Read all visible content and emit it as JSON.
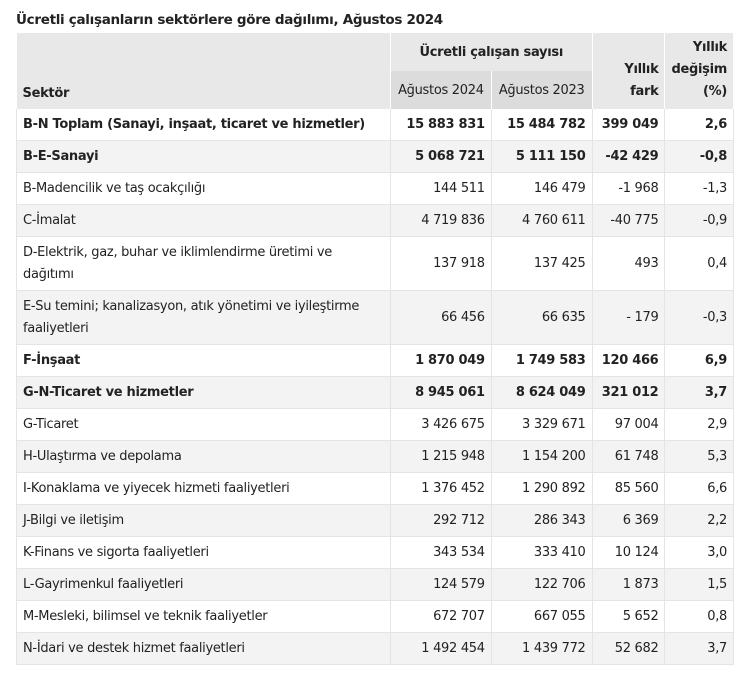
{
  "title": "Ücretli çalışanların sektörlere göre dağılımı, Ağustos 2024",
  "header": {
    "sector": "Sektör",
    "group": "Ücretli çalışan sayısı",
    "col1": "Ağustos 2024",
    "col2": "Ağustos 2023",
    "diff": "Yıllık fark",
    "change": "Yıllık değişim (%)"
  },
  "rows": [
    {
      "sector": "B-N Toplam (Sanayi, inşaat, ticaret ve hizmetler)",
      "a2024": "15 883 831",
      "a2023": "15 484 782",
      "diff": "399 049",
      "change": "2,6"
    },
    {
      "sector": "B-E-Sanayi",
      "a2024": "5 068 721",
      "a2023": "5 111 150",
      "diff": "-42 429",
      "change": "-0,8"
    },
    {
      "sector": "B-Madencilik ve taş ocakçılığı",
      "a2024": "144 511",
      "a2023": "146 479",
      "diff": "-1 968",
      "change": "-1,3"
    },
    {
      "sector": "C-İmalat",
      "a2024": "4 719 836",
      "a2023": "4 760 611",
      "diff": "-40 775",
      "change": "-0,9"
    },
    {
      "sector": "D-Elektrik, gaz, buhar ve iklimlendirme üretimi ve dağıtımı",
      "a2024": "137 918",
      "a2023": "137 425",
      "diff": "493",
      "change": "0,4"
    },
    {
      "sector": "E-Su temini; kanalizasyon, atık yönetimi ve iyileştirme faaliyetleri",
      "a2024": "66 456",
      "a2023": "66 635",
      "diff": "- 179",
      "change": "-0,3"
    },
    {
      "sector": "F-İnşaat",
      "a2024": "1 870 049",
      "a2023": "1 749 583",
      "diff": "120 466",
      "change": "6,9"
    },
    {
      "sector": "G-N-Ticaret ve hizmetler",
      "a2024": "8 945 061",
      "a2023": "8 624 049",
      "diff": "321 012",
      "change": "3,7"
    },
    {
      "sector": "G-Ticaret",
      "a2024": "3 426 675",
      "a2023": "3 329 671",
      "diff": "97 004",
      "change": "2,9"
    },
    {
      "sector": "H-Ulaştırma ve depolama",
      "a2024": "1 215 948",
      "a2023": "1 154 200",
      "diff": "61 748",
      "change": "5,3"
    },
    {
      "sector": "I-Konaklama ve yiyecek hizmeti faaliyetleri",
      "a2024": "1 376 452",
      "a2023": "1 290 892",
      "diff": "85 560",
      "change": "6,6"
    },
    {
      "sector": "J-Bilgi ve iletişim",
      "a2024": "292 712",
      "a2023": "286 343",
      "diff": "6 369",
      "change": "2,2"
    },
    {
      "sector": "K-Finans ve sigorta faaliyetleri",
      "a2024": "343 534",
      "a2023": "333 410",
      "diff": "10 124",
      "change": "3,0"
    },
    {
      "sector": "L-Gayrimenkul faaliyetleri",
      "a2024": "124 579",
      "a2023": "122 706",
      "diff": "1 873",
      "change": "1,5"
    },
    {
      "sector": "M-Mesleki, bilimsel ve teknik faaliyetler",
      "a2024": "672 707",
      "a2023": "667 055",
      "diff": "5 652",
      "change": "0,8"
    },
    {
      "sector": "N-İdari ve destek hizmet faaliyetleri",
      "a2024": "1 492 454",
      "a2023": "1 439 772",
      "diff": "52 682",
      "change": "3,7"
    }
  ]
}
